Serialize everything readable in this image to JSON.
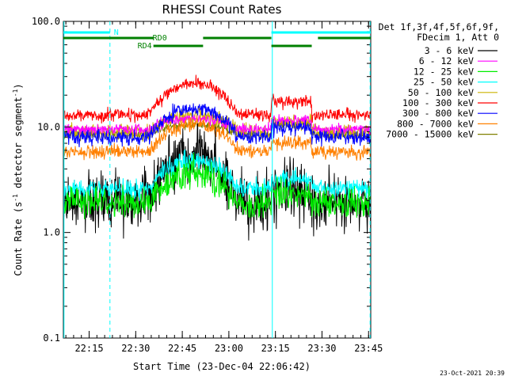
{
  "chart_data": {
    "type": "line",
    "title": "RHESSI Count Rates",
    "xlabel": "Start Time (23-Dec-04 22:06:42)",
    "ylabel": "Count Rate (s^-1 detector segment^-1)",
    "ylabel_parts": {
      "main": "Count Rate (s",
      "sup1": "-1",
      "mid": " detector segment",
      "sup2": "-1",
      "end": ")"
    },
    "yscale": "log",
    "ylim": [
      0.1,
      100
    ],
    "y_ticks": [
      "0.1",
      "1.0",
      "10.0",
      "100.0"
    ],
    "xlim_minutes": [
      0,
      99
    ],
    "x_ticks": [
      {
        "label": "22:15",
        "minute": 8.3
      },
      {
        "label": "22:30",
        "minute": 23.3
      },
      {
        "label": "22:45",
        "minute": 38.3
      },
      {
        "label": "23:00",
        "minute": 53.3
      },
      {
        "label": "23:15",
        "minute": 68.3
      },
      {
        "label": "23:30",
        "minute": 83.3
      },
      {
        "label": "23:45",
        "minute": 98.3
      }
    ],
    "legend_header": [
      "Det 1f,3f,4f,5f,6f,9f,",
      "FDecim 1, Att 0"
    ],
    "series": [
      {
        "name": "3 - 6 keV",
        "color": "#000000",
        "base": 2.0,
        "peak": 5.5
      },
      {
        "name": "6 - 12 keV",
        "color": "#ff00ff",
        "base": 9.5,
        "peak": 12.0
      },
      {
        "name": "12 - 25 keV",
        "color": "#00ee00",
        "base": 1.9,
        "peak": 3.6
      },
      {
        "name": "25 - 50 keV",
        "color": "#00ffff",
        "base": 2.6,
        "peak": 4.8
      },
      {
        "name": "50 - 100 keV",
        "color": "#ccb400",
        "base": 9.0,
        "peak": 13.0
      },
      {
        "name": "100 - 300 keV",
        "color": "#ff0000",
        "base": 13.0,
        "peak": 26.0
      },
      {
        "name": "300 - 800 keV",
        "color": "#0000ff",
        "base": 8.0,
        "peak": 15.0
      },
      {
        "name": "800 - 7000 keV",
        "color": "#ff8000",
        "base": 5.8,
        "peak": 10.5
      },
      {
        "name": "7000 - 15000 keV",
        "color": "#808000",
        "base": 8.5,
        "peak": 10.5
      }
    ],
    "flare_window_minutes": [
      28,
      56
    ],
    "annotations": {
      "night_label": "N",
      "rd0_label": "RD0",
      "rd4_label": "RD4",
      "night_intervals": [
        [
          0,
          15
        ],
        [
          67,
          99
        ]
      ],
      "rd0_intervals": [
        [
          0,
          29
        ],
        [
          45,
          67
        ],
        [
          82,
          99
        ]
      ],
      "rd4_intervals": [
        [
          29,
          45
        ],
        [
          67,
          80
        ]
      ],
      "vertical_lines": [
        {
          "minute": 0.2,
          "style": "solid"
        },
        {
          "minute": 15,
          "style": "dashed"
        },
        {
          "minute": 67.3,
          "style": "solid"
        },
        {
          "minute": 98.8,
          "style": "dashed"
        }
      ]
    }
  },
  "footer": {
    "timestamp": "23-Oct-2021 20:39"
  }
}
